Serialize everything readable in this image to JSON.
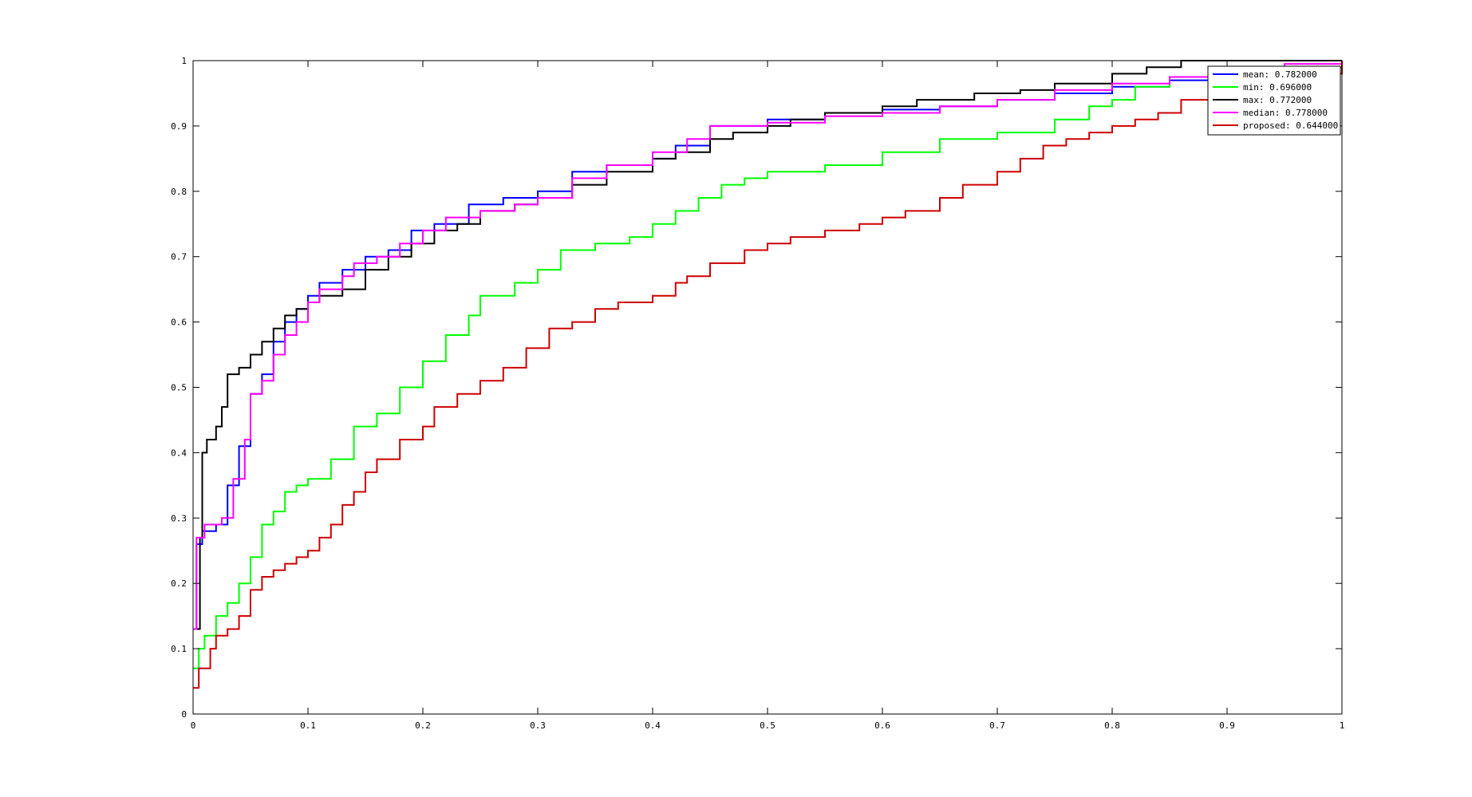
{
  "chart_data": {
    "type": "line",
    "title": "",
    "xlabel": "",
    "ylabel": "",
    "xlim": [
      0,
      1
    ],
    "ylim": [
      0,
      1
    ],
    "grid": false,
    "legend_position": "top-right",
    "x_ticks": [
      "0",
      "0.1",
      "0.2",
      "0.3",
      "0.4",
      "0.5",
      "0.6",
      "0.7",
      "0.8",
      "0.9",
      "1"
    ],
    "y_ticks": [
      "0",
      "0.1",
      "0.2",
      "0.3",
      "0.4",
      "0.5",
      "0.6",
      "0.7",
      "0.8",
      "0.9",
      "1"
    ],
    "series": [
      {
        "name": "mean: 0.782000",
        "color": "#0000ff",
        "points": [
          [
            0,
            0.13
          ],
          [
            0.003,
            0.26
          ],
          [
            0.008,
            0.28
          ],
          [
            0.02,
            0.29
          ],
          [
            0.03,
            0.35
          ],
          [
            0.04,
            0.41
          ],
          [
            0.05,
            0.49
          ],
          [
            0.06,
            0.52
          ],
          [
            0.07,
            0.57
          ],
          [
            0.08,
            0.6
          ],
          [
            0.09,
            0.62
          ],
          [
            0.1,
            0.64
          ],
          [
            0.11,
            0.66
          ],
          [
            0.13,
            0.68
          ],
          [
            0.15,
            0.7
          ],
          [
            0.17,
            0.71
          ],
          [
            0.19,
            0.74
          ],
          [
            0.21,
            0.75
          ],
          [
            0.24,
            0.78
          ],
          [
            0.27,
            0.79
          ],
          [
            0.3,
            0.8
          ],
          [
            0.33,
            0.83
          ],
          [
            0.36,
            0.84
          ],
          [
            0.4,
            0.85
          ],
          [
            0.42,
            0.87
          ],
          [
            0.45,
            0.9
          ],
          [
            0.5,
            0.91
          ],
          [
            0.55,
            0.92
          ],
          [
            0.6,
            0.925
          ],
          [
            0.65,
            0.93
          ],
          [
            0.7,
            0.94
          ],
          [
            0.75,
            0.95
          ],
          [
            0.8,
            0.96
          ],
          [
            0.85,
            0.97
          ],
          [
            0.9,
            0.98
          ],
          [
            0.95,
            0.99
          ],
          [
            1,
            1
          ]
        ]
      },
      {
        "name": "min: 0.696000",
        "color": "#00ff00",
        "points": [
          [
            0,
            0.07
          ],
          [
            0.005,
            0.1
          ],
          [
            0.01,
            0.12
          ],
          [
            0.02,
            0.15
          ],
          [
            0.03,
            0.17
          ],
          [
            0.04,
            0.2
          ],
          [
            0.05,
            0.24
          ],
          [
            0.06,
            0.29
          ],
          [
            0.07,
            0.31
          ],
          [
            0.08,
            0.34
          ],
          [
            0.09,
            0.35
          ],
          [
            0.1,
            0.36
          ],
          [
            0.12,
            0.39
          ],
          [
            0.14,
            0.44
          ],
          [
            0.16,
            0.46
          ],
          [
            0.18,
            0.5
          ],
          [
            0.2,
            0.54
          ],
          [
            0.22,
            0.58
          ],
          [
            0.24,
            0.61
          ],
          [
            0.25,
            0.64
          ],
          [
            0.28,
            0.66
          ],
          [
            0.3,
            0.68
          ],
          [
            0.32,
            0.71
          ],
          [
            0.35,
            0.72
          ],
          [
            0.38,
            0.73
          ],
          [
            0.4,
            0.75
          ],
          [
            0.42,
            0.77
          ],
          [
            0.44,
            0.79
          ],
          [
            0.46,
            0.81
          ],
          [
            0.48,
            0.82
          ],
          [
            0.5,
            0.83
          ],
          [
            0.55,
            0.84
          ],
          [
            0.6,
            0.86
          ],
          [
            0.65,
            0.88
          ],
          [
            0.7,
            0.89
          ],
          [
            0.75,
            0.91
          ],
          [
            0.78,
            0.93
          ],
          [
            0.8,
            0.94
          ],
          [
            0.82,
            0.96
          ],
          [
            0.85,
            0.975
          ],
          [
            0.9,
            0.985
          ],
          [
            0.95,
            0.99
          ],
          [
            1,
            1
          ]
        ]
      },
      {
        "name": "max: 0.772000",
        "color": "#000000",
        "points": [
          [
            0,
            0.13
          ],
          [
            0.006,
            0.27
          ],
          [
            0.008,
            0.4
          ],
          [
            0.012,
            0.42
          ],
          [
            0.02,
            0.44
          ],
          [
            0.025,
            0.47
          ],
          [
            0.03,
            0.52
          ],
          [
            0.04,
            0.53
          ],
          [
            0.05,
            0.55
          ],
          [
            0.06,
            0.57
          ],
          [
            0.07,
            0.59
          ],
          [
            0.08,
            0.61
          ],
          [
            0.09,
            0.62
          ],
          [
            0.1,
            0.63
          ],
          [
            0.11,
            0.64
          ],
          [
            0.13,
            0.65
          ],
          [
            0.15,
            0.68
          ],
          [
            0.17,
            0.7
          ],
          [
            0.19,
            0.72
          ],
          [
            0.21,
            0.74
          ],
          [
            0.23,
            0.75
          ],
          [
            0.25,
            0.77
          ],
          [
            0.28,
            0.78
          ],
          [
            0.3,
            0.79
          ],
          [
            0.33,
            0.81
          ],
          [
            0.36,
            0.83
          ],
          [
            0.4,
            0.85
          ],
          [
            0.42,
            0.86
          ],
          [
            0.45,
            0.88
          ],
          [
            0.47,
            0.89
          ],
          [
            0.5,
            0.9
          ],
          [
            0.52,
            0.91
          ],
          [
            0.55,
            0.92
          ],
          [
            0.6,
            0.93
          ],
          [
            0.63,
            0.94
          ],
          [
            0.68,
            0.95
          ],
          [
            0.72,
            0.955
          ],
          [
            0.75,
            0.965
          ],
          [
            0.8,
            0.98
          ],
          [
            0.83,
            0.99
          ],
          [
            0.86,
            1
          ],
          [
            1,
            1
          ]
        ]
      },
      {
        "name": "median: 0.778000",
        "color": "#ff00ff",
        "points": [
          [
            0,
            0.13
          ],
          [
            0.003,
            0.27
          ],
          [
            0.01,
            0.29
          ],
          [
            0.025,
            0.3
          ],
          [
            0.035,
            0.36
          ],
          [
            0.045,
            0.42
          ],
          [
            0.05,
            0.49
          ],
          [
            0.06,
            0.51
          ],
          [
            0.07,
            0.55
          ],
          [
            0.08,
            0.58
          ],
          [
            0.09,
            0.6
          ],
          [
            0.1,
            0.63
          ],
          [
            0.11,
            0.65
          ],
          [
            0.13,
            0.67
          ],
          [
            0.14,
            0.69
          ],
          [
            0.16,
            0.7
          ],
          [
            0.18,
            0.72
          ],
          [
            0.2,
            0.74
          ],
          [
            0.22,
            0.76
          ],
          [
            0.25,
            0.77
          ],
          [
            0.28,
            0.78
          ],
          [
            0.3,
            0.79
          ],
          [
            0.33,
            0.82
          ],
          [
            0.36,
            0.84
          ],
          [
            0.4,
            0.86
          ],
          [
            0.43,
            0.88
          ],
          [
            0.45,
            0.9
          ],
          [
            0.5,
            0.905
          ],
          [
            0.55,
            0.915
          ],
          [
            0.6,
            0.92
          ],
          [
            0.65,
            0.93
          ],
          [
            0.7,
            0.94
          ],
          [
            0.75,
            0.955
          ],
          [
            0.8,
            0.965
          ],
          [
            0.85,
            0.975
          ],
          [
            0.9,
            0.985
          ],
          [
            0.95,
            0.995
          ],
          [
            1,
            1
          ]
        ]
      },
      {
        "name": "proposed: 0.644000",
        "color": "#cc0000",
        "points": [
          [
            0,
            0.04
          ],
          [
            0.005,
            0.07
          ],
          [
            0.015,
            0.1
          ],
          [
            0.02,
            0.12
          ],
          [
            0.03,
            0.13
          ],
          [
            0.04,
            0.15
          ],
          [
            0.05,
            0.19
          ],
          [
            0.06,
            0.21
          ],
          [
            0.07,
            0.22
          ],
          [
            0.08,
            0.23
          ],
          [
            0.09,
            0.24
          ],
          [
            0.1,
            0.25
          ],
          [
            0.11,
            0.27
          ],
          [
            0.12,
            0.29
          ],
          [
            0.13,
            0.32
          ],
          [
            0.14,
            0.34
          ],
          [
            0.15,
            0.37
          ],
          [
            0.16,
            0.39
          ],
          [
            0.18,
            0.42
          ],
          [
            0.2,
            0.44
          ],
          [
            0.21,
            0.47
          ],
          [
            0.23,
            0.49
          ],
          [
            0.25,
            0.51
          ],
          [
            0.27,
            0.53
          ],
          [
            0.29,
            0.56
          ],
          [
            0.31,
            0.59
          ],
          [
            0.33,
            0.6
          ],
          [
            0.35,
            0.62
          ],
          [
            0.37,
            0.63
          ],
          [
            0.4,
            0.64
          ],
          [
            0.42,
            0.66
          ],
          [
            0.43,
            0.67
          ],
          [
            0.45,
            0.69
          ],
          [
            0.48,
            0.71
          ],
          [
            0.5,
            0.72
          ],
          [
            0.52,
            0.73
          ],
          [
            0.55,
            0.74
          ],
          [
            0.58,
            0.75
          ],
          [
            0.6,
            0.76
          ],
          [
            0.62,
            0.77
          ],
          [
            0.65,
            0.79
          ],
          [
            0.67,
            0.81
          ],
          [
            0.7,
            0.83
          ],
          [
            0.72,
            0.85
          ],
          [
            0.74,
            0.87
          ],
          [
            0.76,
            0.88
          ],
          [
            0.78,
            0.89
          ],
          [
            0.8,
            0.9
          ],
          [
            0.82,
            0.91
          ],
          [
            0.84,
            0.92
          ],
          [
            0.86,
            0.94
          ],
          [
            0.9,
            0.95
          ],
          [
            0.95,
            0.97
          ],
          [
            0.98,
            0.98
          ],
          [
            1,
            1
          ]
        ]
      }
    ]
  }
}
